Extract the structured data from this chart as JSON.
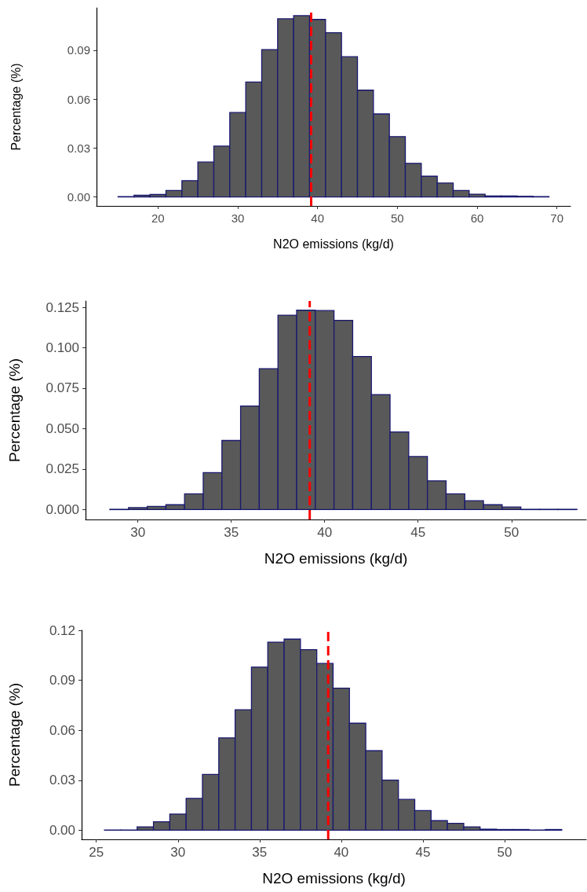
{
  "chart_data": [
    {
      "type": "histogram",
      "xlabel": "N2O emissions (kg/d)",
      "ylabel": "Percentage (%)",
      "bins": [
        15,
        17,
        19,
        21,
        23,
        25,
        27,
        29,
        31,
        33,
        35,
        37,
        39,
        41,
        43,
        45,
        47,
        49,
        51,
        53,
        55,
        57,
        59,
        61,
        63,
        65,
        67,
        69
      ],
      "values": [
        0.0002,
        0.001,
        0.0015,
        0.004,
        0.01,
        0.0214,
        0.0312,
        0.0518,
        0.0705,
        0.0904,
        0.1093,
        0.1112,
        0.1089,
        0.1008,
        0.086,
        0.0655,
        0.0509,
        0.037,
        0.0206,
        0.0127,
        0.0085,
        0.004,
        0.0017,
        0.0006,
        0.0006,
        0.0004,
        0.0002
      ],
      "color": "#595959",
      "xlim": [
        12.3,
        71.7
      ],
      "xticks": [
        20,
        30,
        40,
        50,
        60,
        70
      ],
      "ylim": [
        -0.0055,
        0.116
      ],
      "yticks": [
        {
          "value": 0,
          "label": "0.00"
        },
        0.03,
        0.06,
        0.09
      ],
      "ref_lines": [
        {
          "axis": "x",
          "value": 39.2,
          "color": "#ff0000",
          "line_style": "dashed"
        }
      ]
    },
    {
      "type": "histogram",
      "xlabel": "N2O emissions (kg/d)",
      "ylabel": "Percentage (%)",
      "bins": [
        28.5,
        29.5,
        30.5,
        31.5,
        32.5,
        33.5,
        34.5,
        35.5,
        36.5,
        37.5,
        38.5,
        39.5,
        40.5,
        41.5,
        42.5,
        43.5,
        44.5,
        45.5,
        46.5,
        47.5,
        48.5,
        49.5,
        50.5,
        51.5,
        52.5,
        53.5
      ],
      "values": [
        0.0002,
        0.0012,
        0.002,
        0.003,
        0.0097,
        0.0229,
        0.0427,
        0.064,
        0.0871,
        0.1201,
        0.1232,
        0.123,
        0.1169,
        0.0946,
        0.0711,
        0.048,
        0.0328,
        0.0178,
        0.0097,
        0.0055,
        0.003,
        0.0016,
        0.0002,
        0.0002,
        0.0002
      ],
      "color": "#595959",
      "xlim": [
        27.2,
        54
      ],
      "xticks": [
        30,
        35,
        40,
        45,
        50
      ],
      "ylim": [
        -0.0061,
        0.1289
      ],
      "yticks": [
        {
          "value": 0,
          "label": "0.000"
        },
        0.025,
        {
          "value": 0.05,
          "label": "0.050"
        },
        0.075,
        {
          "value": 0.1,
          "label": "0.100"
        },
        0.125
      ],
      "ref_lines": [
        {
          "axis": "x",
          "value": 39.2,
          "color": "#ff0000",
          "line_style": "dashed"
        }
      ]
    },
    {
      "type": "histogram",
      "xlabel": "N2O emissions (kg/d)",
      "ylabel": "Percentage (%)",
      "bins": [
        25.5,
        26.5,
        27.5,
        28.5,
        29.5,
        30.5,
        31.5,
        32.5,
        33.5,
        34.5,
        35.5,
        36.5,
        37.5,
        38.5,
        39.5,
        40.5,
        41.5,
        42.5,
        43.5,
        44.5,
        45.5,
        46.5,
        47.5,
        48.5,
        49.5,
        50.5,
        51.5,
        52.5,
        53.5
      ],
      "values": [
        0.0001,
        0.0001,
        0.002,
        0.0051,
        0.0097,
        0.0191,
        0.0335,
        0.0554,
        0.0723,
        0.0979,
        0.1129,
        0.1147,
        0.1084,
        0.1001,
        0.0853,
        0.0642,
        0.0477,
        0.0301,
        0.0185,
        0.0118,
        0.0057,
        0.0041,
        0.002,
        0.0006,
        0.0004,
        0.0004,
        0.0001,
        0.0004
      ],
      "color": "#595959",
      "xlim": [
        24.1,
        55
      ],
      "xticks": [
        25,
        30,
        35,
        40,
        45,
        50
      ],
      "ylim": [
        -0.0055,
        0.12
      ],
      "yticks": [
        {
          "value": 0,
          "label": "0.00"
        },
        0.03,
        0.06,
        0.09,
        {
          "value": 0.12,
          "label": "0.12"
        }
      ],
      "ref_lines": [
        {
          "axis": "x",
          "value": 39.2,
          "color": "#ff0000",
          "line_style": "dashed"
        }
      ]
    }
  ]
}
